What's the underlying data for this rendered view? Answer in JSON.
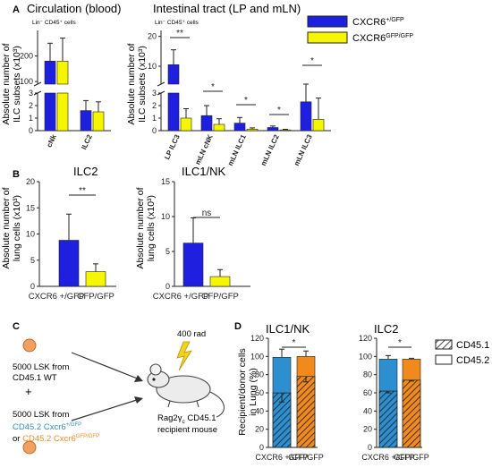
{
  "panels": {
    "A": {
      "letter": "A",
      "legend": [
        {
          "base": "CXCR6",
          "sup": "+/GFP",
          "color": "#1f1fe0"
        },
        {
          "base": "CXCR6",
          "sup": "GFP/GFP",
          "color": "#f6f600"
        }
      ],
      "blood": {
        "title": "Circulation (blood)",
        "subtitle": "Lin⁻ CD45⁺ cells",
        "ylabel_line1": "Absolute number of",
        "ylabel_line2": "ILC subsets (x10³)",
        "upper_ticks": [
          "200",
          "100"
        ],
        "lower_ticks": [
          "3",
          "2",
          "1",
          "0"
        ],
        "categories": [
          "cNk",
          "ILC2"
        ]
      },
      "gut": {
        "title": "Intestinal tract (LP and mLN)",
        "subtitle": "Lin⁻ CD45⁺ cells",
        "ylabel_line1": "Absolute number of",
        "ylabel_line2": "ILC subsets (x10³)",
        "upper_ticks": [
          "20",
          "10"
        ],
        "lower_ticks": [
          "3",
          "2",
          "1",
          "0"
        ],
        "categories": [
          "LP ILC3",
          "mLN cNK",
          "mLN ILC1",
          "mLN ILC2",
          "mLN ILC3"
        ],
        "sig": [
          "**",
          "*",
          "*",
          "*",
          "*"
        ]
      }
    },
    "B": {
      "letter": "B",
      "ilc2": {
        "title": "ILC2",
        "ylabel_line1": "Absolute number of",
        "ylabel_line2": "lung cells (x10³)",
        "ticks": [
          "20",
          "15",
          "10",
          "5",
          "0"
        ],
        "sig": "**",
        "xlabels": [
          "CXCR6 +/GFP",
          "GFP/GFP"
        ]
      },
      "ilc1": {
        "title": "ILC1/NK",
        "ylabel_line1": "Absolute number of",
        "ylabel_line2": "lung cells (x10³)",
        "ticks": [
          "15",
          "10",
          "5",
          "0"
        ],
        "sig": "ns",
        "xlabels": [
          "CXCR6 +/GFP",
          "GFP/GFP"
        ]
      }
    },
    "C": {
      "letter": "C",
      "donor1_line1": "5000 LSK from",
      "donor1_line2": "CD45.1 WT",
      "plus": "+",
      "donor2_line1": "5000 LSK from",
      "donor2_line2_base": "CD45.2 Cxcr6",
      "donor2_line2_sup": "+/GFP",
      "donor2_line3_prefix": "or ",
      "donor2_line3_base": "CD45.2 Cxcr6",
      "donor2_line3_sup": "GFP/GFP",
      "irradiation": "400 rad",
      "recipient_line1": "Rag2γ",
      "recipient_line1_sub": "c",
      "recipient_line1_rest": " CD45.1",
      "recipient_line2": "recipient mouse",
      "color_blue_text": "#2d8fd0",
      "color_orange_text": "#f08a1c"
    },
    "D": {
      "letter": "D",
      "ylabel_line1": "Recipient/donor cells",
      "ylabel_line2": "in Lung (%)",
      "ticks": [
        "120",
        "100",
        "80",
        "60",
        "40",
        "20",
        "0"
      ],
      "xlabels": [
        "CXCR6 +/GFP",
        "GFP/GFP"
      ],
      "legend": [
        {
          "label": "CD45.1",
          "pattern": "hatched"
        },
        {
          "label": "CD45.2",
          "pattern": "open"
        }
      ],
      "ilc1": {
        "title": "ILC1/NK",
        "sig": "*"
      },
      "ilc2": {
        "title": "ILC2",
        "sig": "*"
      }
    }
  },
  "chart_data": [
    {
      "type": "bar",
      "title": "Circulation (blood)",
      "ylabel": "Absolute number of ILC subsets (x10³)",
      "broken_axis": true,
      "categories": [
        "cNk",
        "ILC2"
      ],
      "series": [
        {
          "name": "CXCR6+/GFP",
          "values": [
            180,
            1.6
          ],
          "errors": [
            70,
            0.8
          ]
        },
        {
          "name": "CXCR6GFP/GFP",
          "values": [
            180,
            1.5
          ],
          "errors": [
            90,
            0.8
          ]
        }
      ]
    },
    {
      "type": "bar",
      "title": "Intestinal tract (LP and mLN)",
      "ylabel": "Absolute number of ILC subsets (x10³)",
      "broken_axis": true,
      "categories": [
        "LP ILC3",
        "mLN cNK",
        "mLN ILC1",
        "mLN ILC2",
        "mLN ILC3"
      ],
      "series": [
        {
          "name": "CXCR6+/GFP",
          "values": [
            10.5,
            1.2,
            0.6,
            0.25,
            2.3
          ],
          "errors": [
            5.0,
            0.8,
            0.45,
            0.12,
            0.95
          ]
        },
        {
          "name": "CXCR6GFP/GFP",
          "values": [
            1.0,
            0.5,
            0.12,
            0.06,
            0.9
          ],
          "errors": [
            0.75,
            0.45,
            0.1,
            0.05,
            1.7
          ]
        }
      ]
    },
    {
      "type": "bar",
      "title": "ILC2",
      "ylabel": "Absolute number of lung cells (x10³)",
      "ylim": [
        0,
        20
      ],
      "categories": [
        "CXCR6 +/GFP",
        "GFP/GFP"
      ],
      "values": [
        8.8,
        2.8
      ],
      "errors": [
        5.0,
        1.5
      ],
      "colors": [
        "#1f1fe0",
        "#f6f600"
      ]
    },
    {
      "type": "bar",
      "title": "ILC1/NK",
      "ylabel": "Absolute number of lung cells (x10³)",
      "ylim": [
        0,
        15
      ],
      "categories": [
        "CXCR6 +/GFP",
        "GFP/GFP"
      ],
      "values": [
        6.2,
        1.4
      ],
      "errors": [
        3.6,
        1.0
      ],
      "colors": [
        "#1f1fe0",
        "#f6f600"
      ]
    },
    {
      "type": "bar",
      "stacked": true,
      "title": "ILC1/NK",
      "ylabel": "Recipient/donor cells in Lung (%)",
      "ylim": [
        0,
        120
      ],
      "categories": [
        "CXCR6 +/GFP",
        "GFP/GFP"
      ],
      "series": [
        {
          "name": "CD45.1",
          "values": [
            60,
            78
          ],
          "errors": [
            10,
            6
          ]
        },
        {
          "name": "CD45.2",
          "values": [
            39,
            22
          ],
          "errors": [
            9,
            6
          ]
        }
      ],
      "colors": [
        "#2d8fd0",
        "#f08a1c"
      ]
    },
    {
      "type": "bar",
      "stacked": true,
      "title": "ILC2",
      "ylabel": "Recipient/donor cells in Lung (%)",
      "ylim": [
        0,
        120
      ],
      "categories": [
        "CXCR6 +/GFP",
        "GFP/GFP"
      ],
      "series": [
        {
          "name": "CD45.1",
          "values": [
            62,
            74
          ],
          "errors": [
            2,
            1
          ]
        },
        {
          "name": "CD45.2",
          "values": [
            35,
            23
          ],
          "errors": [
            4,
            1
          ]
        }
      ],
      "colors": [
        "#2d8fd0",
        "#f08a1c"
      ]
    }
  ]
}
